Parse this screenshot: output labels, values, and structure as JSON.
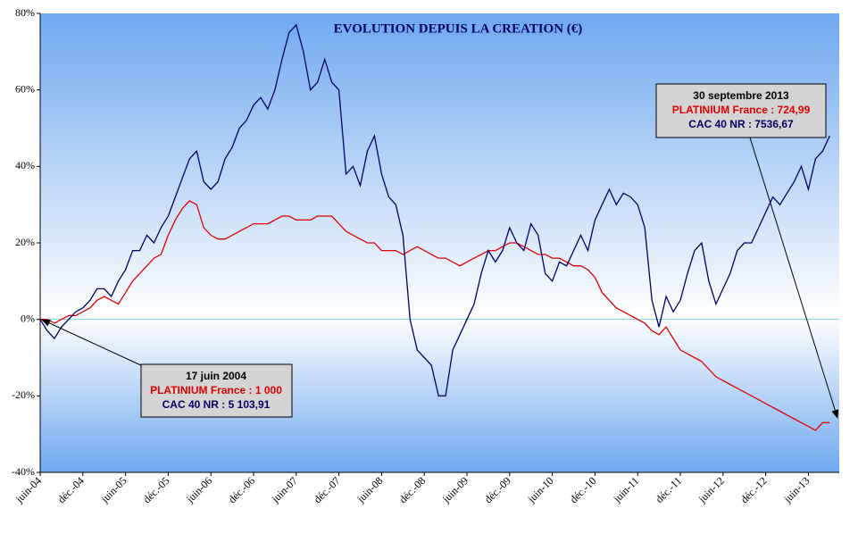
{
  "chart_data": {
    "type": "line",
    "title": "EVOLUTION DEPUIS LA CREATION (€)",
    "categories": [
      "juin-04",
      null,
      null,
      null,
      null,
      null,
      "déc.-04",
      null,
      null,
      null,
      null,
      null,
      "juin-05",
      null,
      null,
      null,
      null,
      null,
      "déc.-05",
      null,
      null,
      null,
      null,
      null,
      "juin-06",
      null,
      null,
      null,
      null,
      null,
      "déc.-06",
      null,
      null,
      null,
      null,
      null,
      "juin-07",
      null,
      null,
      null,
      null,
      null,
      "déc.-07",
      null,
      null,
      null,
      null,
      null,
      "juin-08",
      null,
      null,
      null,
      null,
      null,
      "déc.-08",
      null,
      null,
      null,
      null,
      null,
      "juin-09",
      null,
      null,
      null,
      null,
      null,
      "déc.-09",
      null,
      null,
      null,
      null,
      null,
      "juin-10",
      null,
      null,
      null,
      null,
      null,
      "déc.-10",
      null,
      null,
      null,
      null,
      null,
      "juin-11",
      null,
      null,
      null,
      null,
      null,
      "déc.-11",
      null,
      null,
      null,
      null,
      null,
      "juin-12",
      null,
      null,
      null,
      null,
      null,
      "déc.-12",
      null,
      null,
      null,
      null,
      null,
      "juin-13",
      null,
      null,
      null
    ],
    "series": [
      {
        "color": "#000066",
        "values": [
          0,
          -3,
          -5,
          -2,
          0,
          2,
          3,
          5,
          8,
          8,
          6,
          10,
          13,
          18,
          18,
          22,
          20,
          24,
          27,
          32,
          37,
          42,
          44,
          36,
          34,
          36,
          42,
          45,
          50,
          52,
          56,
          58,
          55,
          60,
          68,
          75,
          77,
          70,
          60,
          62,
          68,
          62,
          60,
          38,
          40,
          35,
          44,
          48,
          38,
          32,
          30,
          22,
          0,
          -8,
          -10,
          -12,
          -20,
          -20,
          -8,
          -4,
          0,
          4,
          12,
          18,
          15,
          18,
          24,
          20,
          18,
          25,
          22,
          12,
          10,
          15,
          14,
          18,
          22,
          18,
          26,
          30,
          34,
          30,
          33,
          32,
          30,
          24,
          5,
          -2,
          6,
          2,
          5,
          12,
          18,
          20,
          10,
          4,
          8,
          12,
          18,
          20,
          20,
          24,
          28,
          32,
          30,
          33,
          36,
          40,
          34,
          42,
          44,
          48
        ]
      },
      {
        "color": "#e00000",
        "values": [
          0,
          0,
          -1,
          0,
          1,
          1,
          2,
          3,
          5,
          6,
          5,
          4,
          7,
          10,
          12,
          14,
          16,
          17,
          22,
          26,
          29,
          31,
          30,
          24,
          22,
          21,
          21,
          22,
          23,
          24,
          25,
          25,
          25,
          26,
          27,
          27,
          26,
          26,
          26,
          27,
          27,
          27,
          25,
          23,
          22,
          21,
          20,
          20,
          18,
          18,
          18,
          17,
          18,
          19,
          18,
          17,
          16,
          16,
          15,
          14,
          15,
          16,
          17,
          18,
          18,
          19,
          20,
          20,
          19,
          18,
          17,
          17,
          16,
          16,
          15,
          14,
          14,
          13,
          11,
          7,
          5,
          3,
          2,
          1,
          0,
          -1,
          -3,
          -4,
          -2,
          -5,
          -8,
          -9,
          -10,
          -11,
          -13,
          -15,
          -16,
          -17,
          -18,
          -19,
          -20,
          -21,
          -22,
          -23,
          -24,
          -25,
          -26,
          -27,
          -28,
          -29,
          -27,
          -27
        ]
      }
    ],
    "ylim": [
      -40,
      80
    ],
    "yticks": [
      {
        "value": -40,
        "label": "-40%"
      },
      {
        "value": -20,
        "label": "-20%"
      },
      {
        "value": 0,
        "label": "0%"
      },
      {
        "value": 20,
        "label": "20%"
      },
      {
        "value": 40,
        "label": "40%"
      },
      {
        "value": 60,
        "label": "60%"
      },
      {
        "value": 80,
        "label": "80%"
      }
    ],
    "annotations": [
      {
        "date": "17 juin 2004",
        "fund": "PLATINIUM  France : 1 000",
        "index": "CAC 40  NR : 5 103,91"
      },
      {
        "date": "30 septembre 2013",
        "fund": "PLATINIUM  France : 724,99",
        "index": "CAC 40  NR : 7536,67"
      }
    ]
  }
}
